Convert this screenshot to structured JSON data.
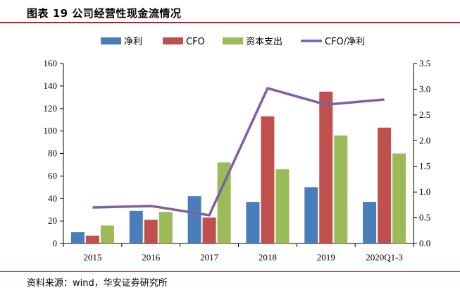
{
  "figure": {
    "title": "图表 19  公司经营性现金流情况",
    "source": "资料来源：wind，华安证券研究所"
  },
  "chart_data": {
    "type": "bar",
    "categories": [
      "2015",
      "2016",
      "2017",
      "2018",
      "2019",
      "2020Q1-3"
    ],
    "series": [
      {
        "name": "净利",
        "type": "bar",
        "axis": "left",
        "color": "#4a7ebb",
        "values": [
          10,
          29,
          42,
          37,
          50,
          37
        ]
      },
      {
        "name": "CFO",
        "type": "bar",
        "axis": "left",
        "color": "#c0504d",
        "values": [
          7,
          21,
          23,
          113,
          135,
          103
        ]
      },
      {
        "name": "资本支出",
        "type": "bar",
        "axis": "left",
        "color": "#9bbb59",
        "values": [
          16,
          28,
          72,
          66,
          96,
          80
        ]
      },
      {
        "name": "CFO/净利",
        "type": "line",
        "axis": "right",
        "color": "#7f5fa4",
        "values": [
          0.7,
          0.73,
          0.55,
          3.02,
          2.7,
          2.8
        ]
      }
    ],
    "left_axis": {
      "ylim": [
        0,
        160
      ],
      "ticks": [
        "0",
        "20",
        "40",
        "60",
        "80",
        "100",
        "120",
        "140",
        "160"
      ]
    },
    "right_axis": {
      "ylim": [
        0,
        3.5
      ],
      "ticks": [
        "0.0",
        "0.5",
        "1.0",
        "1.5",
        "2.0",
        "2.5",
        "3.0",
        "3.5"
      ]
    },
    "legend_position": "top-center",
    "grid": false
  }
}
